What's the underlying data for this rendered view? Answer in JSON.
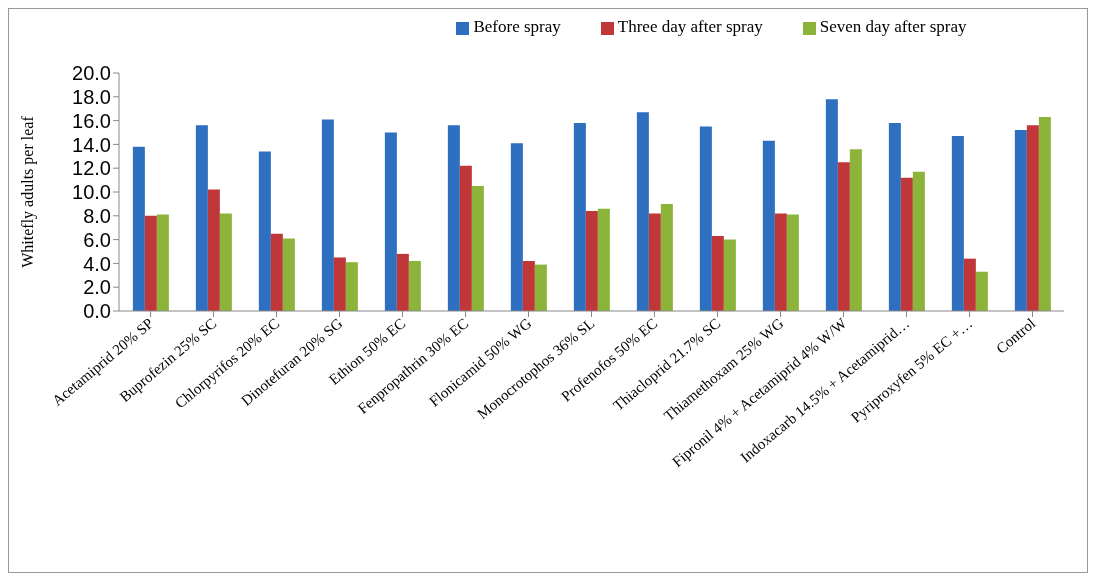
{
  "chart_data": {
    "type": "bar",
    "ylabel": "Whitefly adults per leaf",
    "categories": [
      "Acetamiprid 20% SP",
      "Buprofezin 25% SC",
      "Chlorpyrifos 20% EC",
      "Dinotefuran 20% SG",
      "Ethion 50% EC",
      "Fenpropathrin 30% EC",
      "Flonicamid 50% WG",
      "Monocrotophos 36% SL",
      "Profenofos 50% EC",
      "Thiacloprid 21.7% SC",
      "Thiamethoxam 25% WG",
      "Fipronil 4% + Acetamiprid 4% W/W",
      "Indoxacarb 14.5% + Acetamiprid…",
      "Pyriproxyfen 5% EC +…",
      "Control"
    ],
    "series": [
      {
        "name": "Before spray",
        "color": "#2e6fc0",
        "values": [
          13.8,
          15.6,
          13.4,
          16.1,
          15.0,
          15.6,
          14.1,
          15.8,
          16.7,
          15.5,
          14.3,
          17.8,
          15.8,
          14.7,
          15.2
        ]
      },
      {
        "name": "Three day after spray",
        "color": "#c0373a",
        "values": [
          8.0,
          10.2,
          6.5,
          4.5,
          4.8,
          12.2,
          4.2,
          8.4,
          8.2,
          6.3,
          8.2,
          12.5,
          11.2,
          4.4,
          15.6
        ]
      },
      {
        "name": "Seven day after spray",
        "color": "#8cb33a",
        "values": [
          8.1,
          8.2,
          6.1,
          4.1,
          4.2,
          10.5,
          3.9,
          8.6,
          9.0,
          6.0,
          8.1,
          13.6,
          11.7,
          3.3,
          16.3
        ]
      }
    ],
    "ylim": [
      0,
      20
    ],
    "yticks": [
      {
        "value": 0,
        "label": "0.0"
      },
      {
        "value": 2,
        "label": "2.0"
      },
      {
        "value": 4,
        "label": "4.0"
      },
      {
        "value": 6,
        "label": "6.0"
      },
      {
        "value": 8,
        "label": "8.0"
      },
      {
        "value": 10,
        "label": "10.0"
      },
      {
        "value": 12,
        "label": "12.0"
      },
      {
        "value": 14,
        "label": "14.0"
      },
      {
        "value": 16,
        "label": "16.0"
      },
      {
        "value": 18,
        "label": "18.0"
      },
      {
        "value": 20,
        "label": "20.0"
      }
    ],
    "grid": false,
    "legend": "top"
  }
}
